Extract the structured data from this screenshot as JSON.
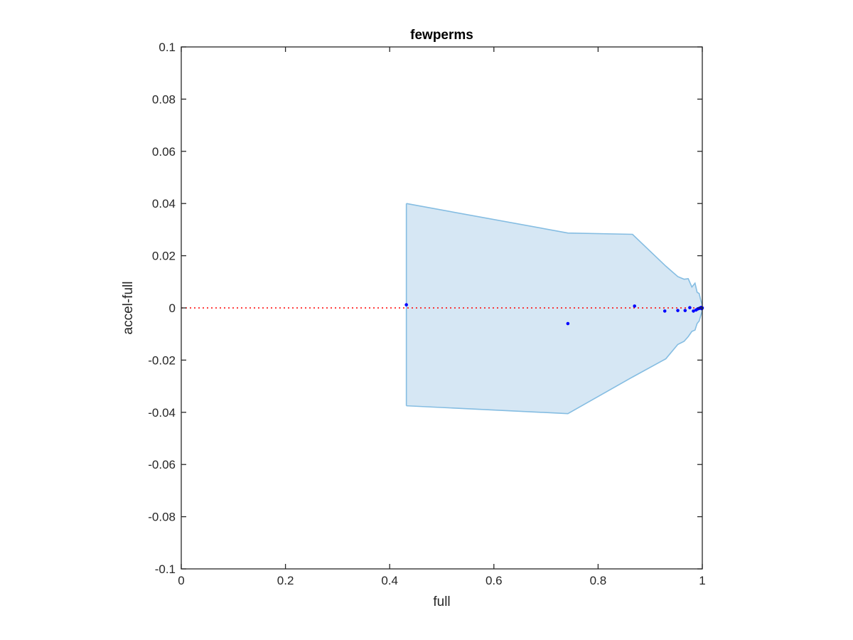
{
  "chart_data": {
    "type": "scatter",
    "title": "fewperms",
    "xlabel": "full",
    "ylabel": "accel-full",
    "xlim": [
      0,
      1
    ],
    "ylim": [
      -0.1,
      0.1
    ],
    "x_ticks": [
      0,
      0.2,
      0.4,
      0.6,
      0.8,
      1
    ],
    "x_tick_labels": [
      "0",
      "0.2",
      "0.4",
      "0.6",
      "0.8",
      "1"
    ],
    "y_ticks": [
      -0.1,
      -0.08,
      -0.06,
      -0.04,
      -0.02,
      0,
      0.02,
      0.04,
      0.06,
      0.08,
      0.1
    ],
    "y_tick_labels": [
      "-0.1",
      "-0.08",
      "-0.06",
      "-0.04",
      "-0.02",
      "0",
      "0.02",
      "0.04",
      "0.06",
      "0.08",
      "0.1"
    ],
    "grid": false,
    "reference_line": {
      "y": 0,
      "style": "dotted",
      "color": "#ff0000"
    },
    "band": {
      "fill": "#d6e7f4",
      "edge": "#85bde2",
      "upper": [
        [
          0.432,
          0.04
        ],
        [
          0.742,
          0.0287
        ],
        [
          0.866,
          0.0282
        ],
        [
          0.93,
          0.016
        ],
        [
          0.953,
          0.012
        ],
        [
          0.965,
          0.011
        ],
        [
          0.973,
          0.0112
        ],
        [
          0.98,
          0.008
        ],
        [
          0.986,
          0.0095
        ],
        [
          0.99,
          0.006
        ],
        [
          0.994,
          0.0055
        ],
        [
          0.997,
          0.003
        ],
        [
          1.0,
          0.001
        ]
      ],
      "lower": [
        [
          0.432,
          -0.0375
        ],
        [
          0.742,
          -0.0405
        ],
        [
          0.866,
          -0.0265
        ],
        [
          0.93,
          -0.0195
        ],
        [
          0.953,
          -0.014
        ],
        [
          0.965,
          -0.0128
        ],
        [
          0.973,
          -0.011
        ],
        [
          0.98,
          -0.009
        ],
        [
          0.986,
          -0.0085
        ],
        [
          0.99,
          -0.006
        ],
        [
          0.994,
          -0.005
        ],
        [
          0.997,
          -0.003
        ],
        [
          1.0,
          -0.001
        ]
      ]
    },
    "series": [
      {
        "color": "#0000ff",
        "x": [
          0.432,
          0.742,
          0.87,
          0.928,
          0.953,
          0.967,
          0.976,
          0.983,
          0.988,
          0.991,
          0.994,
          0.996,
          0.998,
          0.999,
          1.0
        ],
        "y": [
          0.0012,
          -0.006,
          0.0007,
          -0.0012,
          -0.001,
          -0.001,
          0.0001,
          -0.0012,
          -0.0008,
          -0.0004,
          -0.0002,
          0.0,
          0.0002,
          -0.0003,
          0.0
        ]
      }
    ]
  }
}
